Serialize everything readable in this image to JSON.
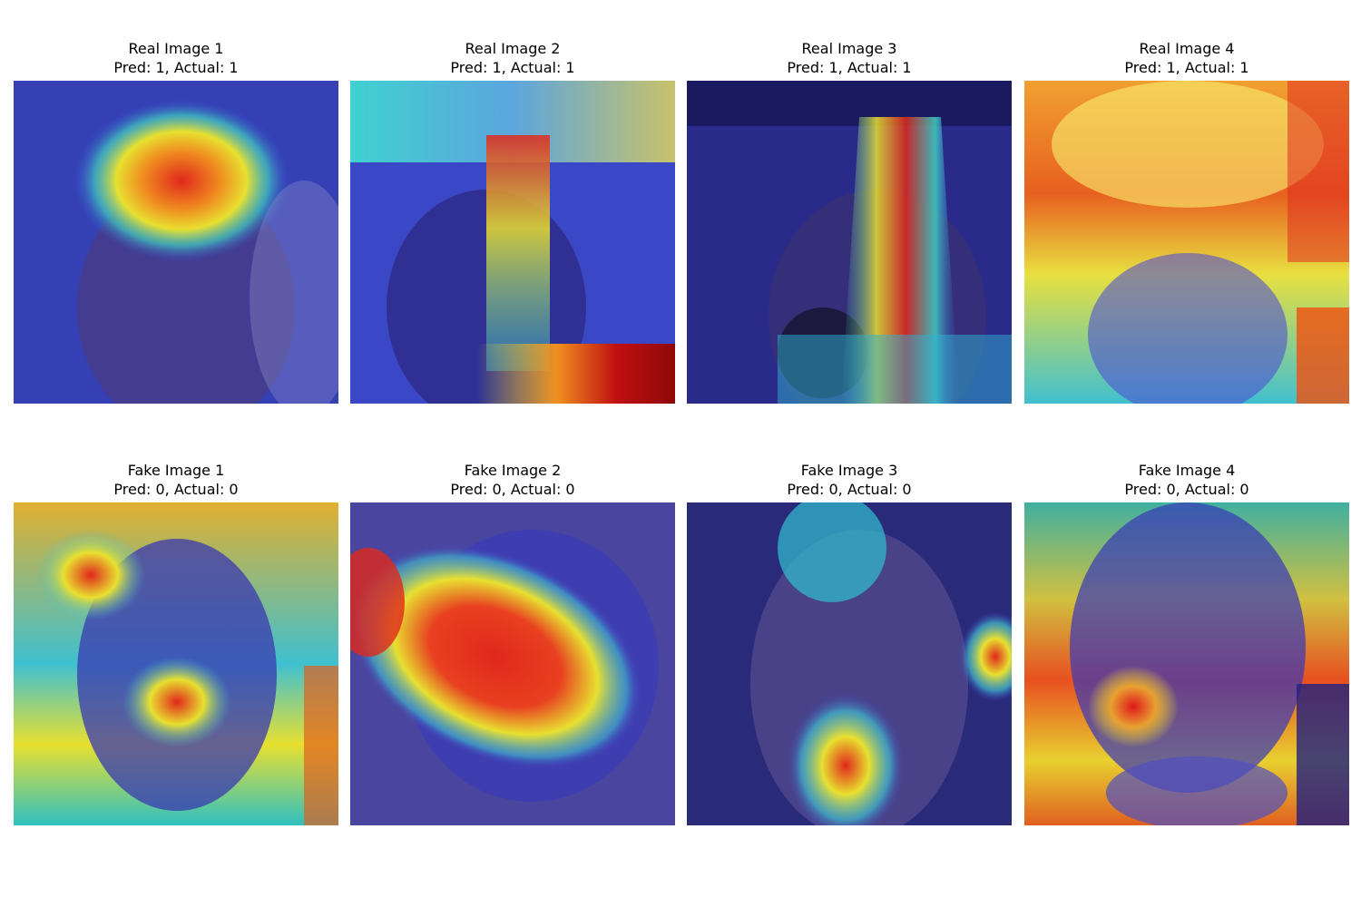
{
  "figure": {
    "panels": [
      {
        "title": "Real Image 1",
        "caption": "Pred: 1, Actual: 1"
      },
      {
        "title": "Real Image 2",
        "caption": "Pred: 1, Actual: 1"
      },
      {
        "title": "Real Image 3",
        "caption": "Pred: 1, Actual: 1"
      },
      {
        "title": "Real Image 4",
        "caption": "Pred: 1, Actual: 1"
      },
      {
        "title": "Fake Image 1",
        "caption": "Pred: 0, Actual: 0"
      },
      {
        "title": "Fake Image 2",
        "caption": "Pred: 0, Actual: 0"
      },
      {
        "title": "Fake Image 3",
        "caption": "Pred: 0, Actual: 0"
      },
      {
        "title": "Fake Image 4",
        "caption": "Pred: 0, Actual: 0"
      }
    ]
  },
  "colors": {
    "background": "#ffffff",
    "heatmap_cold": "#2a2ab8",
    "heatmap_hot": "#e8221a"
  }
}
